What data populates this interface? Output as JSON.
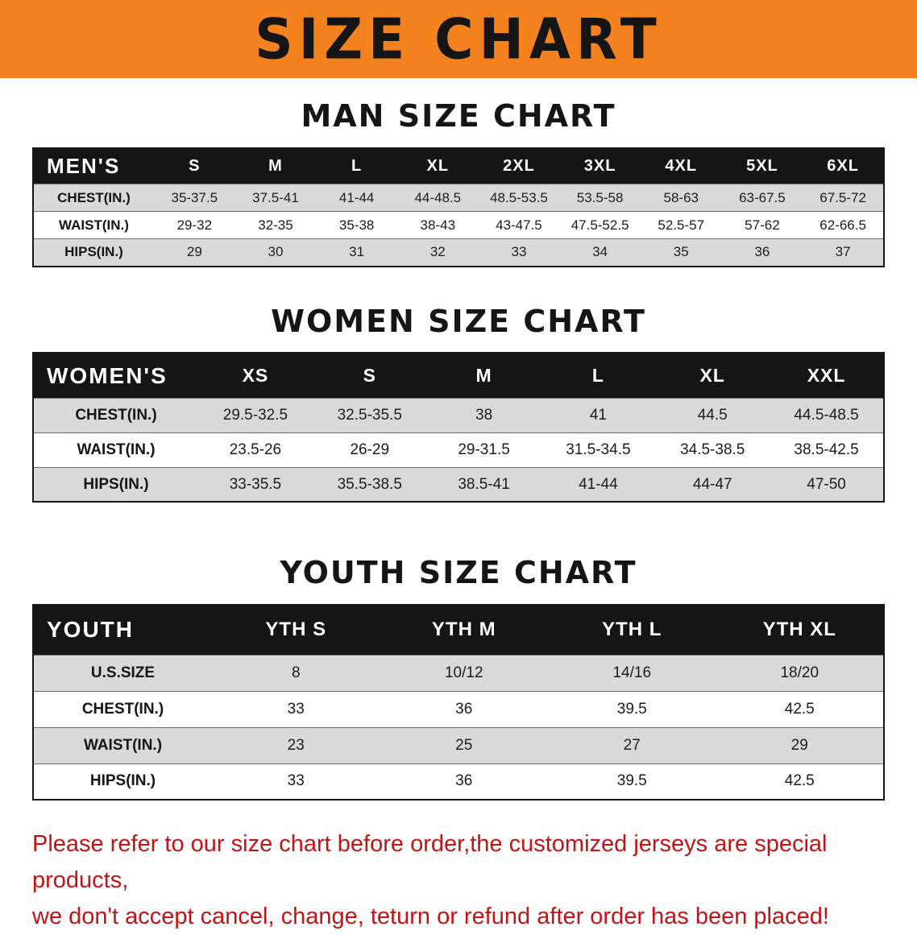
{
  "banner": {
    "title": "SIZE CHART"
  },
  "sections": [
    {
      "heading": "MAN SIZE CHART",
      "table": {
        "header": [
          "MEN'S",
          "S",
          "M",
          "L",
          "XL",
          "2XL",
          "3XL",
          "4XL",
          "5XL",
          "6XL"
        ],
        "rows": [
          [
            "CHEST(IN.)",
            "35-37.5",
            "37.5-41",
            "41-44",
            "44-48.5",
            "48.5-53.5",
            "53.5-58",
            "58-63",
            "63-67.5",
            "67.5-72"
          ],
          [
            "WAIST(IN.)",
            "29-32",
            "32-35",
            "35-38",
            "38-43",
            "43-47.5",
            "47.5-52.5",
            "52.5-57",
            "57-62",
            "62-66.5"
          ],
          [
            "HIPS(IN.)",
            "29",
            "30",
            "31",
            "32",
            "33",
            "34",
            "35",
            "36",
            "37"
          ]
        ]
      }
    },
    {
      "heading": "WOMEN SIZE CHART",
      "table": {
        "header": [
          "WOMEN'S",
          "XS",
          "S",
          "M",
          "L",
          "XL",
          "XXL"
        ],
        "rows": [
          [
            "CHEST(IN.)",
            "29.5-32.5",
            "32.5-35.5",
            "38",
            "41",
            "44.5",
            "44.5-48.5"
          ],
          [
            "WAIST(IN.)",
            "23.5-26",
            "26-29",
            "29-31.5",
            "31.5-34.5",
            "34.5-38.5",
            "38.5-42.5"
          ],
          [
            "HIPS(IN.)",
            "33-35.5",
            "35.5-38.5",
            "38.5-41",
            "41-44",
            "44-47",
            "47-50"
          ]
        ]
      }
    },
    {
      "heading": "YOUTH SIZE CHART",
      "table": {
        "header": [
          "YOUTH",
          "YTH S",
          "YTH M",
          "YTH L",
          "YTH XL"
        ],
        "rows": [
          [
            "U.S.SIZE",
            "8",
            "10/12",
            "14/16",
            "18/20"
          ],
          [
            "CHEST(IN.)",
            "33",
            "36",
            "39.5",
            "42.5"
          ],
          [
            "WAIST(IN.)",
            "23",
            "25",
            "27",
            "29"
          ],
          [
            "HIPS(IN.)",
            "33",
            "36",
            "39.5",
            "42.5"
          ]
        ]
      }
    }
  ],
  "footer": {
    "lines": [
      "Please refer to our size chart before order,the customized jerseys are special products,",
      "we don't accept cancel, change, teturn or refund after order has been placed!"
    ]
  },
  "colors": {
    "banner_bg": "#F4821E",
    "header_bg": "#151515",
    "row_alt_bg": "#d9d9d9",
    "footer_text": "#C21414"
  }
}
